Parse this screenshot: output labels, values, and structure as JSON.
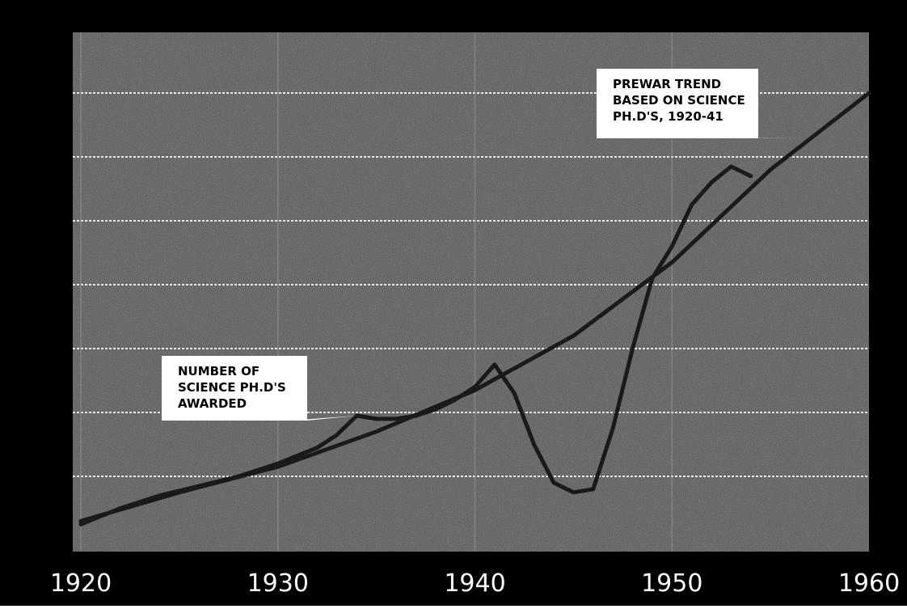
{
  "chart_data": {
    "type": "line",
    "x_ticks": [
      "1920",
      "1930",
      "1940",
      "1950",
      "1960"
    ],
    "xlim": [
      1920,
      1960
    ],
    "ylim": [
      0,
      7
    ],
    "grid": "horizontal",
    "series": [
      {
        "x": [
          1920,
          1922,
          1924,
          1926,
          1928,
          1930,
          1932,
          1933,
          1934,
          1935,
          1936,
          1937,
          1938,
          1939,
          1940,
          1941,
          1942,
          1943,
          1944,
          1945,
          1946,
          1947,
          1948,
          1949,
          1950,
          1951,
          1952,
          1953,
          1954
        ],
        "y": [
          0.25,
          0.5,
          0.7,
          0.85,
          1.0,
          1.2,
          1.45,
          1.65,
          1.95,
          1.9,
          1.9,
          1.95,
          2.05,
          2.2,
          2.4,
          2.75,
          2.3,
          1.5,
          0.9,
          0.75,
          0.8,
          1.75,
          3.0,
          4.1,
          4.6,
          5.25,
          5.6,
          5.85,
          5.7
        ]
      },
      {
        "x": [
          1920,
          1925,
          1930,
          1935,
          1940,
          1945,
          1950,
          1955,
          1960
        ],
        "y": [
          0.3,
          0.75,
          1.15,
          1.7,
          2.35,
          3.2,
          4.35,
          5.8,
          7.0
        ]
      }
    ],
    "annotations": [
      {
        "lines": [
          "NUMBER OF",
          "SCIENCE PH.D'S",
          "AWARDED"
        ],
        "target_x": 1934,
        "target_y": 1.95
      },
      {
        "lines": [
          "PREWAR TREND",
          "BASED ON SCIENCE",
          "PH.D'S, 1920-41"
        ],
        "target_x": 1957,
        "target_y": 6.3
      }
    ]
  },
  "colors": {
    "outer_background": "#000000",
    "plot_background": "#5a5a5a",
    "line_color": "#1a1a1a",
    "gridline_color": "#ffffff",
    "label_box_color": "#ffffff",
    "label_text_color": "#000000",
    "tick_label_color": "#ffffff"
  }
}
